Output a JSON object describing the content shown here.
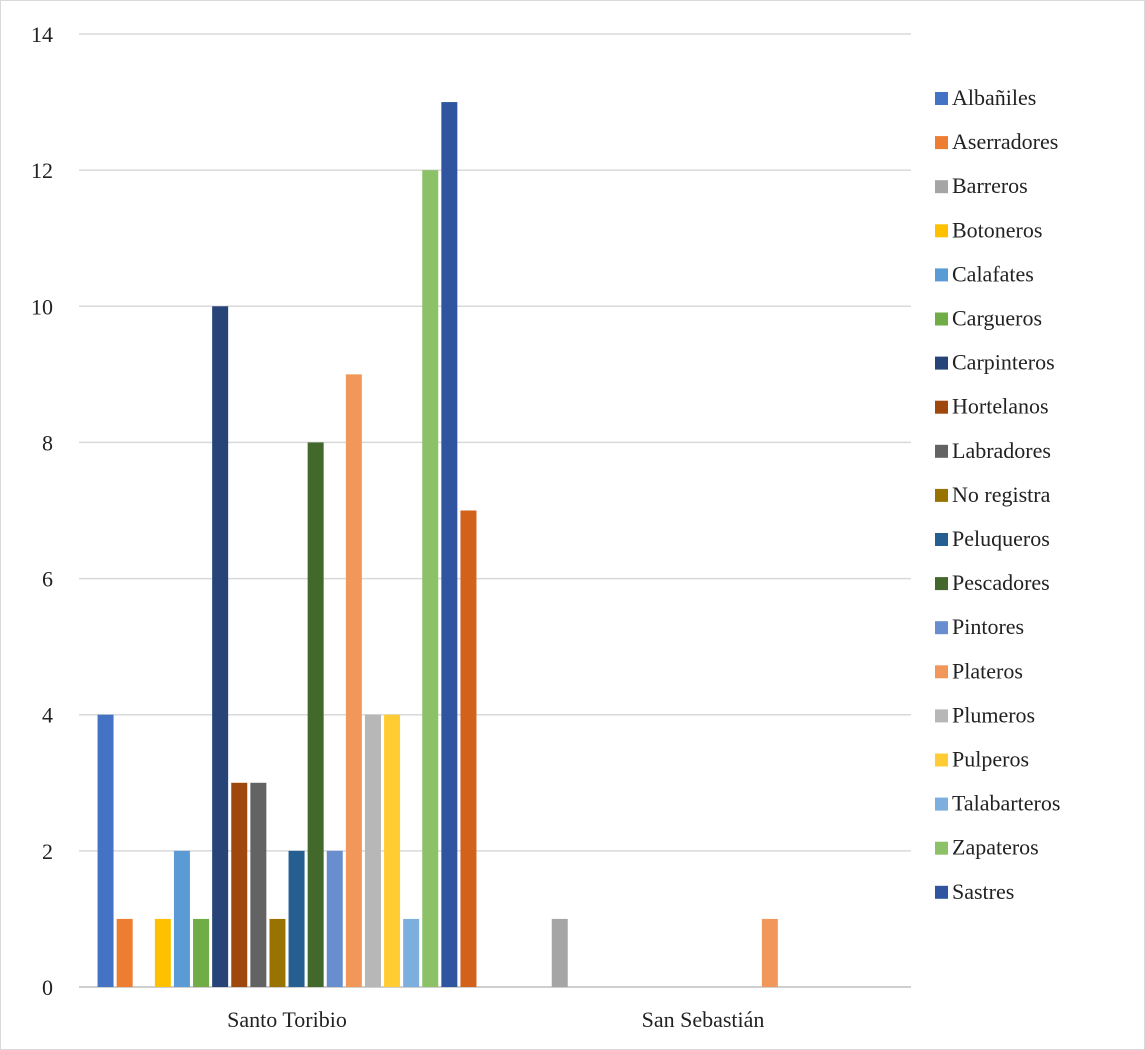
{
  "chart_data": {
    "type": "bar",
    "title": "",
    "xlabel": "",
    "ylabel": "",
    "ylim": [
      0,
      14
    ],
    "yticks": [
      0,
      2,
      4,
      6,
      8,
      10,
      12,
      14
    ],
    "grid": true,
    "legend_position": "right",
    "categories": [
      "Santo Toribio",
      "San Sebastián"
    ],
    "series": [
      {
        "name": "Albañiles",
        "color": "#4472C4",
        "values": [
          4,
          0
        ]
      },
      {
        "name": "Aserradores",
        "color": "#ED7D31",
        "values": [
          1,
          0
        ]
      },
      {
        "name": "Barreros",
        "color": "#A5A5A5",
        "values": [
          0,
          1
        ]
      },
      {
        "name": "Botoneros",
        "color": "#FFC000",
        "values": [
          1,
          0
        ]
      },
      {
        "name": "Calafates",
        "color": "#5B9BD5",
        "values": [
          2,
          0
        ]
      },
      {
        "name": "Cargueros",
        "color": "#70AD47",
        "values": [
          1,
          0
        ]
      },
      {
        "name": "Carpinteros",
        "color": "#264478",
        "values": [
          10,
          0
        ]
      },
      {
        "name": "Hortelanos",
        "color": "#9E480E",
        "values": [
          3,
          0
        ]
      },
      {
        "name": "Labradores",
        "color": "#636363",
        "values": [
          3,
          0
        ]
      },
      {
        "name": "No registra",
        "color": "#997300",
        "values": [
          1,
          0
        ]
      },
      {
        "name": "Peluqueros",
        "color": "#255E91",
        "values": [
          2,
          0
        ]
      },
      {
        "name": "Pescadores",
        "color": "#43682B",
        "values": [
          8,
          0
        ]
      },
      {
        "name": "Pintores",
        "color": "#698ED0",
        "values": [
          2,
          0
        ]
      },
      {
        "name": "Plateros",
        "color": "#F1975A",
        "values": [
          9,
          1
        ]
      },
      {
        "name": "Plumeros",
        "color": "#B7B7B7",
        "values": [
          4,
          0
        ]
      },
      {
        "name": "Pulperos",
        "color": "#FFCD33",
        "values": [
          4,
          0
        ]
      },
      {
        "name": "Talabarteros",
        "color": "#7CAFDD",
        "values": [
          1,
          0
        ]
      },
      {
        "name": "Zapateros",
        "color": "#8CC168",
        "values": [
          12,
          0
        ]
      },
      {
        "name": "Sastres",
        "color": "#2F55A0",
        "values": [
          13,
          0
        ]
      },
      {
        "name": "",
        "color": "#D2611C",
        "values": [
          7,
          0
        ]
      }
    ]
  }
}
